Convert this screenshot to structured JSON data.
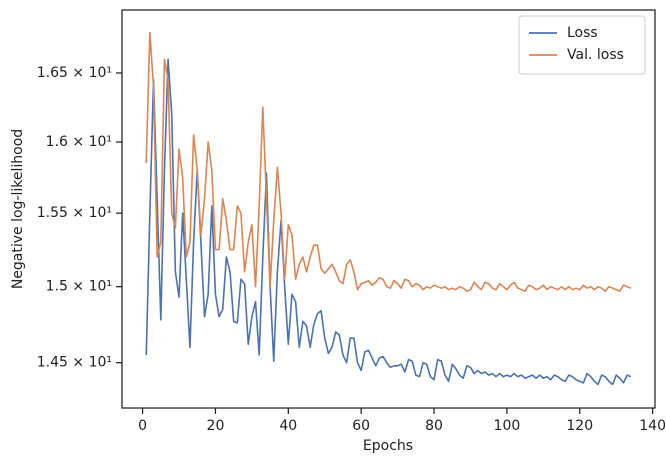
{
  "chart_data": {
    "type": "line",
    "xlabel": "Epochs",
    "ylabel": "Negative log-likelihood",
    "xlim": [
      -5.65,
      140.65
    ],
    "xticks": [
      0,
      20,
      40,
      60,
      80,
      100,
      120,
      140
    ],
    "ylim": [
      14.21,
      16.97
    ],
    "log_y": true,
    "yticks": [
      {
        "value": 14.5,
        "label": "1.45 × 10¹"
      },
      {
        "value": 15,
        "label": "1.5 × 10¹"
      },
      {
        "value": 15.5,
        "label": "1.55 × 10¹"
      },
      {
        "value": 16,
        "label": "1.6 × 10¹"
      },
      {
        "value": 16.5,
        "label": "1.65 × 10¹"
      }
    ],
    "legend": "upper right",
    "grid": false,
    "x": [
      1,
      2,
      3,
      4,
      5,
      6,
      7,
      8,
      9,
      10,
      11,
      12,
      13,
      14,
      15,
      16,
      17,
      18,
      19,
      20,
      21,
      22,
      23,
      24,
      25,
      26,
      27,
      28,
      29,
      30,
      31,
      32,
      33,
      34,
      35,
      36,
      37,
      38,
      39,
      40,
      41,
      42,
      43,
      44,
      45,
      46,
      47,
      48,
      49,
      50,
      51,
      52,
      53,
      54,
      55,
      56,
      57,
      58,
      59,
      60,
      61,
      62,
      63,
      64,
      65,
      66,
      67,
      68,
      69,
      70,
      71,
      72,
      73,
      74,
      75,
      76,
      77,
      78,
      79,
      80,
      81,
      82,
      83,
      84,
      85,
      86,
      87,
      88,
      89,
      90,
      91,
      92,
      93,
      94,
      95,
      96,
      97,
      98,
      99,
      100,
      101,
      102,
      103,
      104,
      105,
      106,
      107,
      108,
      109,
      110,
      111,
      112,
      113,
      114,
      115,
      116,
      117,
      118,
      119,
      120,
      121,
      122,
      123,
      124,
      125,
      126,
      127,
      128,
      129,
      130,
      131,
      132,
      133,
      134
    ],
    "series": [
      {
        "name": "Loss",
        "color": "#4c72b0",
        "values": [
          14.55,
          15.5,
          16.45,
          15.6,
          14.78,
          15.8,
          16.6,
          16.2,
          15.1,
          14.93,
          15.5,
          15.05,
          14.6,
          15.3,
          15.8,
          15.3,
          14.8,
          14.95,
          15.55,
          14.95,
          14.8,
          14.85,
          15.2,
          15.1,
          14.77,
          14.76,
          15.05,
          15.02,
          14.62,
          14.8,
          14.9,
          14.55,
          15.2,
          15.78,
          15.0,
          14.51,
          15.1,
          15.45,
          15.0,
          14.62,
          14.95,
          14.9,
          14.6,
          14.77,
          14.74,
          14.6,
          14.75,
          14.82,
          14.84,
          14.66,
          14.56,
          14.6,
          14.7,
          14.68,
          14.55,
          14.5,
          14.66,
          14.66,
          14.5,
          14.45,
          14.57,
          14.58,
          14.53,
          14.48,
          14.53,
          14.54,
          14.5,
          14.47,
          14.48,
          14.48,
          14.49,
          14.44,
          14.52,
          14.51,
          14.42,
          14.41,
          14.5,
          14.49,
          14.41,
          14.39,
          14.52,
          14.51,
          14.42,
          14.38,
          14.49,
          14.46,
          14.42,
          14.4,
          14.48,
          14.47,
          14.43,
          14.45,
          14.43,
          14.44,
          14.42,
          14.43,
          14.41,
          14.43,
          14.41,
          14.42,
          14.41,
          14.43,
          14.41,
          14.42,
          14.4,
          14.41,
          14.42,
          14.4,
          14.42,
          14.4,
          14.41,
          14.39,
          14.42,
          14.41,
          14.39,
          14.38,
          14.42,
          14.41,
          14.39,
          14.38,
          14.37,
          14.43,
          14.41,
          14.38,
          14.36,
          14.42,
          14.41,
          14.38,
          14.36,
          14.42,
          14.4,
          14.37,
          14.42,
          14.41
        ]
      },
      {
        "name": "Val. loss",
        "color": "#dd8452",
        "values": [
          15.85,
          16.8,
          16.4,
          15.2,
          15.3,
          16.6,
          16.45,
          15.5,
          15.4,
          15.95,
          15.75,
          15.2,
          15.3,
          16.05,
          15.8,
          15.35,
          15.6,
          16.0,
          15.8,
          15.25,
          15.25,
          15.6,
          15.45,
          15.25,
          15.25,
          15.55,
          15.5,
          15.1,
          15.3,
          15.42,
          15.0,
          15.55,
          16.25,
          15.6,
          15.0,
          15.45,
          15.82,
          15.5,
          15.05,
          15.42,
          15.35,
          15.05,
          15.15,
          15.2,
          15.1,
          15.2,
          15.28,
          15.28,
          15.12,
          15.09,
          15.12,
          15.15,
          15.1,
          15.04,
          15.02,
          15.15,
          15.18,
          15.1,
          14.98,
          15.02,
          15.03,
          15.04,
          15.01,
          15.03,
          15.06,
          15.05,
          15.0,
          14.99,
          15.04,
          15.02,
          14.99,
          15.05,
          15.04,
          15.0,
          15.02,
          15.01,
          14.98,
          15.0,
          14.99,
          15.01,
          15.0,
          14.99,
          15.0,
          14.98,
          14.99,
          14.98,
          15.0,
          14.99,
          14.97,
          14.98,
          15.03,
          15.0,
          14.98,
          15.03,
          15.02,
          14.99,
          14.98,
          15.02,
          15.0,
          14.98,
          15.01,
          15.03,
          14.99,
          14.98,
          14.97,
          15.01,
          15.0,
          14.98,
          14.99,
          15.01,
          14.98,
          15.0,
          14.99,
          14.98,
          15.0,
          14.98,
          15.0,
          14.98,
          14.99,
          14.98,
          15.01,
          14.99,
          15.0,
          14.98,
          15.0,
          14.99,
          14.97,
          15.0,
          14.99,
          14.98,
          14.97,
          15.01,
          15.0,
          14.99
        ]
      }
    ]
  }
}
